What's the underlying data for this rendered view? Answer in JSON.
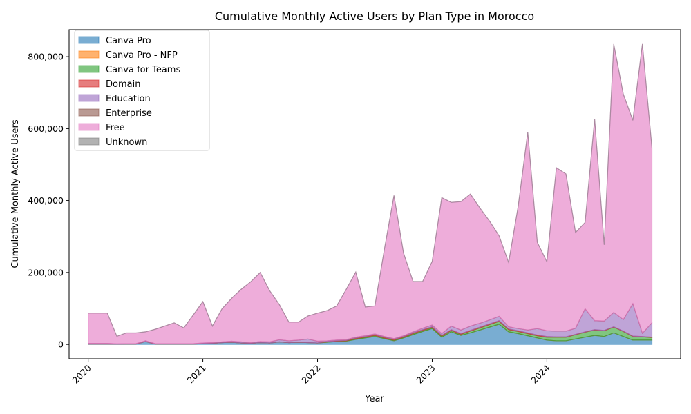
{
  "chart_data": {
    "type": "area",
    "stacked": true,
    "title": "Cumulative Monthly Active Users by Plan Type in Morocco",
    "xlabel": "Year",
    "ylabel": "Cumulative Monthly Active Users",
    "x_tick_labels": [
      "2020",
      "2021",
      "2022",
      "2023",
      "2024"
    ],
    "y_tick_labels": [
      "0",
      "200,000",
      "400,000",
      "600,000",
      "800,000"
    ],
    "y_ticks": [
      0,
      200000,
      400000,
      600000,
      800000
    ],
    "ylim": [
      -40000,
      875000
    ],
    "xlim": [
      "2019-11",
      "2025-03"
    ],
    "legend_position": "upper left",
    "grid": false,
    "x": [
      "2020-01",
      "2020-02",
      "2020-03",
      "2020-04",
      "2020-05",
      "2020-06",
      "2020-07",
      "2020-08",
      "2020-09",
      "2020-10",
      "2020-11",
      "2020-12",
      "2021-01",
      "2021-02",
      "2021-03",
      "2021-04",
      "2021-05",
      "2021-06",
      "2021-07",
      "2021-08",
      "2021-09",
      "2021-10",
      "2021-11",
      "2021-12",
      "2022-01",
      "2022-02",
      "2022-03",
      "2022-04",
      "2022-05",
      "2022-06",
      "2022-07",
      "2022-08",
      "2022-09",
      "2022-10",
      "2022-11",
      "2022-12",
      "2023-01",
      "2023-02",
      "2023-03",
      "2023-04",
      "2023-05",
      "2023-06",
      "2023-07",
      "2023-08",
      "2023-09",
      "2023-10",
      "2023-11",
      "2023-12",
      "2024-01",
      "2024-02",
      "2024-03",
      "2024-04",
      "2024-05",
      "2024-06",
      "2024-07",
      "2024-08",
      "2024-09",
      "2024-10",
      "2024-11",
      "2024-12"
    ],
    "series": [
      {
        "name": "Canva Pro",
        "color": "#1f77b4",
        "values": [
          1000,
          1000,
          1000,
          500,
          1000,
          1000,
          8000,
          1000,
          1000,
          1000,
          1000,
          1000,
          2000,
          3000,
          5000,
          6000,
          4000,
          3000,
          5000,
          4000,
          7000,
          5000,
          6000,
          5000,
          4000,
          6000,
          8000,
          9000,
          14000,
          18000,
          22000,
          16000,
          10000,
          18000,
          27000,
          36000,
          44000,
          20000,
          35000,
          25000,
          32000,
          40000,
          48000,
          56000,
          35000,
          30000,
          24000,
          18000,
          12000,
          10000,
          10000,
          15000,
          20000,
          25000,
          22000,
          32000,
          22000,
          12000,
          12000,
          12000
        ]
      },
      {
        "name": "Canva Pro - NFP",
        "color": "#ff7f0e",
        "values": [
          0,
          0,
          0,
          0,
          0,
          0,
          0,
          0,
          0,
          0,
          0,
          0,
          0,
          0,
          0,
          0,
          0,
          0,
          0,
          0,
          0,
          0,
          0,
          0,
          0,
          0,
          0,
          0,
          0,
          0,
          0,
          0,
          0,
          0,
          0,
          0,
          0,
          0,
          0,
          0,
          0,
          0,
          0,
          0,
          0,
          0,
          0,
          0,
          0,
          0,
          0,
          0,
          0,
          0,
          0,
          0,
          0,
          0,
          0,
          0
        ]
      },
      {
        "name": "Canva for Teams",
        "color": "#2ca02c",
        "values": [
          0,
          0,
          0,
          0,
          0,
          0,
          0,
          0,
          0,
          0,
          0,
          0,
          0,
          0,
          0,
          0,
          0,
          0,
          0,
          0,
          0,
          0,
          0,
          0,
          0,
          1000,
          1000,
          1000,
          2000,
          2000,
          3000,
          2000,
          2000,
          2000,
          3000,
          3000,
          3000,
          3000,
          4000,
          3000,
          5000,
          6000,
          7000,
          8000,
          6000,
          6000,
          6000,
          6000,
          8000,
          10000,
          10000,
          12000,
          14000,
          15000,
          16000,
          16000,
          14000,
          10000,
          9000,
          7000
        ]
      },
      {
        "name": "Domain",
        "color": "#d62728",
        "values": [
          0,
          0,
          0,
          0,
          0,
          0,
          0,
          0,
          0,
          0,
          0,
          0,
          0,
          0,
          0,
          0,
          0,
          0,
          0,
          0,
          0,
          0,
          0,
          0,
          0,
          1000,
          1000,
          1000,
          2000,
          2000,
          2000,
          2000,
          2000,
          2000,
          2000,
          2000,
          2000,
          2000,
          2000,
          2000,
          2000,
          2000,
          2000,
          2000,
          2000,
          2000,
          2000,
          2000,
          2000,
          1000,
          1000,
          1000,
          1000,
          1000,
          1000,
          1000,
          1000,
          1000,
          1000,
          1000
        ]
      },
      {
        "name": "Education",
        "color": "#9467bd",
        "values": [
          2000,
          2000,
          2000,
          1000,
          1000,
          1000,
          2000,
          1000,
          1000,
          1000,
          1000,
          1000,
          2000,
          2000,
          2000,
          3000,
          3000,
          2000,
          3000,
          3000,
          6000,
          5000,
          6000,
          10000,
          5000,
          2000,
          2000,
          2000,
          2000,
          2000,
          2000,
          2000,
          2000,
          2000,
          3000,
          4000,
          5000,
          5000,
          10000,
          10000,
          12000,
          11000,
          11000,
          12000,
          6000,
          6000,
          8000,
          18000,
          16000,
          16000,
          16000,
          17000,
          64000,
          25000,
          26000,
          40000,
          32000,
          90000,
          9000,
          40000
        ]
      },
      {
        "name": "Enterprise",
        "color": "#8c564b",
        "values": [
          0,
          0,
          0,
          0,
          0,
          0,
          0,
          0,
          0,
          0,
          0,
          0,
          0,
          0,
          0,
          0,
          0,
          0,
          0,
          0,
          0,
          0,
          0,
          0,
          0,
          0,
          0,
          0,
          0,
          0,
          0,
          0,
          0,
          0,
          0,
          0,
          0,
          0,
          0,
          0,
          0,
          0,
          0,
          0,
          0,
          0,
          0,
          0,
          0,
          0,
          0,
          0,
          0,
          0,
          0,
          0,
          0,
          0,
          0,
          0
        ]
      },
      {
        "name": "Free",
        "color": "#e377c2",
        "values": [
          84000,
          84000,
          84000,
          21000,
          30000,
          30000,
          25000,
          40000,
          49000,
          58000,
          44000,
          80000,
          115000,
          46000,
          92000,
          119000,
          146000,
          169000,
          192000,
          142000,
          98000,
          52000,
          50000,
          64000,
          78000,
          84000,
          95000,
          140000,
          181000,
          80000,
          78000,
          243000,
          398000,
          230000,
          140000,
          130000,
          177000,
          378000,
          344000,
          357000,
          367000,
          320000,
          275000,
          224000,
          179000,
          340000,
          550000,
          240000,
          192000,
          454000,
          437000,
          266000,
          240000,
          560000,
          212000,
          746000,
          627000,
          510000,
          804000,
          486000
        ]
      },
      {
        "name": "Unknown",
        "color": "#7f7f7f",
        "values": [
          0,
          0,
          0,
          0,
          0,
          0,
          0,
          0,
          0,
          0,
          0,
          0,
          0,
          0,
          0,
          0,
          0,
          0,
          0,
          0,
          0,
          0,
          0,
          0,
          0,
          0,
          0,
          0,
          0,
          0,
          0,
          0,
          0,
          0,
          0,
          0,
          0,
          0,
          0,
          0,
          0,
          0,
          0,
          0,
          0,
          0,
          0,
          0,
          0,
          0,
          0,
          0,
          0,
          0,
          0,
          0,
          0,
          0,
          0,
          0
        ]
      }
    ]
  }
}
